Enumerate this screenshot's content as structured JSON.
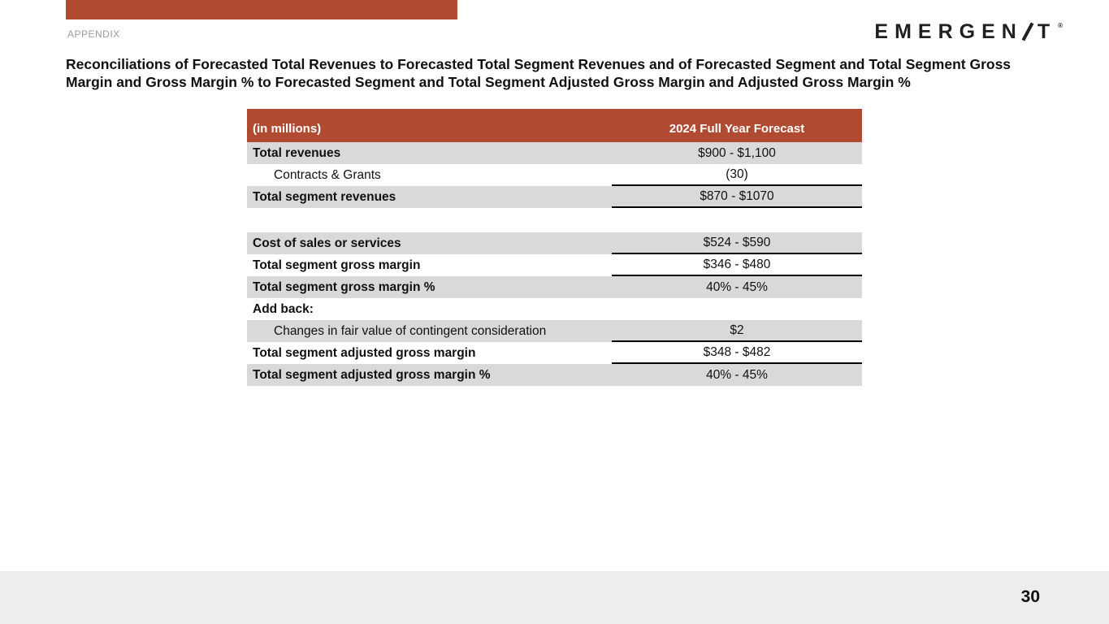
{
  "slide": {
    "appendix_label": "APPENDIX",
    "logo": {
      "left": "EMERGEN",
      "right": "T",
      "trademark": "®"
    },
    "title": "Reconciliations of Forecasted Total Revenues to Forecasted Total Segment Revenues and of Forecasted Segment and Total Segment Gross Margin and Gross Margin % to Forecasted Segment and Total Segment Adjusted Gross Margin and Adjusted Gross Margin %",
    "page_number": "30",
    "colors": {
      "accent": "#b04a30",
      "row_shade": "#d9d9d9",
      "footer_band": "#ededed"
    }
  },
  "table": {
    "header": {
      "label": "(in millions)",
      "value": "2024 Full Year Forecast"
    },
    "rows": [
      {
        "label": "Total revenues",
        "value": "$900 - $1,100",
        "bold": true,
        "indent": false,
        "shaded": true,
        "underline": false,
        "spacer": false
      },
      {
        "label": "Contracts & Grants",
        "value": "(30)",
        "bold": false,
        "indent": true,
        "shaded": false,
        "underline": true,
        "spacer": false
      },
      {
        "label": "Total segment revenues",
        "value": "$870 - $1070",
        "bold": true,
        "indent": false,
        "shaded": true,
        "underline": true,
        "spacer": false
      },
      {
        "label": "",
        "value": "",
        "bold": false,
        "indent": false,
        "shaded": false,
        "underline": false,
        "spacer": true
      },
      {
        "label": "Cost of sales or services",
        "value": "$524 - $590",
        "bold": true,
        "indent": false,
        "shaded": true,
        "underline": true,
        "spacer": false
      },
      {
        "label": "Total segment gross margin",
        "value": "$346 - $480",
        "bold": true,
        "indent": false,
        "shaded": false,
        "underline": true,
        "spacer": false
      },
      {
        "label": "Total segment gross margin %",
        "value": "40% - 45%",
        "bold": true,
        "indent": false,
        "shaded": true,
        "underline": false,
        "spacer": false
      },
      {
        "label": "Add back:",
        "value": "",
        "bold": true,
        "indent": false,
        "shaded": false,
        "underline": false,
        "spacer": false
      },
      {
        "label": "Changes in fair value of contingent consideration",
        "value": "$2",
        "bold": false,
        "indent": true,
        "shaded": true,
        "underline": true,
        "spacer": false
      },
      {
        "label": "Total segment adjusted gross margin",
        "value": "$348 - $482",
        "bold": true,
        "indent": false,
        "shaded": false,
        "underline": true,
        "spacer": false
      },
      {
        "label": "Total segment adjusted gross margin %",
        "value": "40% - 45%",
        "bold": true,
        "indent": false,
        "shaded": true,
        "underline": false,
        "spacer": false
      }
    ]
  }
}
